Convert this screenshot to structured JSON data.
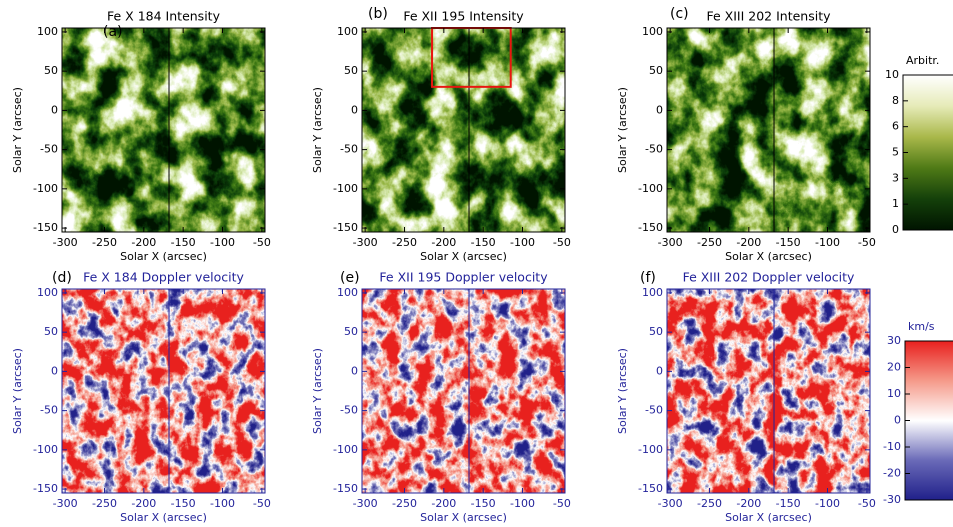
{
  "chart_data": [
    {
      "type": "heatmap",
      "panel_label": "(a)",
      "title": "Fe X 184 Intensity",
      "xlabel": "Solar X (arcsec)",
      "ylabel": "Solar Y (arcsec)",
      "xlim": [
        -304,
        -46
      ],
      "ylim": [
        -155,
        105
      ],
      "xticks": [
        -300,
        -250,
        -200,
        -150,
        -100,
        -50
      ],
      "yticks": [
        -150,
        -100,
        -50,
        0,
        50,
        100
      ],
      "colormap": "green",
      "text_color": "#000000",
      "line_x": -168,
      "line_color": "#000000"
    },
    {
      "type": "heatmap",
      "panel_label": "(b)",
      "title": "Fe XII 195 Intensity",
      "xlabel": "Solar X (arcsec)",
      "ylabel": "Solar Y (arcsec)",
      "xlim": [
        -304,
        -46
      ],
      "ylim": [
        -155,
        105
      ],
      "xticks": [
        -300,
        -250,
        -200,
        -150,
        -100,
        -50
      ],
      "yticks": [
        -150,
        -100,
        -50,
        0,
        50,
        100
      ],
      "colormap": "green",
      "text_color": "#000000",
      "line_x": -168,
      "line_color": "#000000",
      "box": {
        "x": [
          -215,
          -115
        ],
        "y": [
          30,
          105
        ],
        "color": "#e8160f"
      }
    },
    {
      "type": "heatmap",
      "panel_label": "(c)",
      "title": "Fe XIII 202 Intensity",
      "xlabel": "Solar X (arcsec)",
      "ylabel": "Solar Y (arcsec)",
      "xlim": [
        -304,
        -46
      ],
      "ylim": [
        -155,
        105
      ],
      "xticks": [
        -300,
        -250,
        -200,
        -150,
        -100,
        -50
      ],
      "yticks": [
        -150,
        -100,
        -50,
        0,
        50,
        100
      ],
      "colormap": "green",
      "text_color": "#000000",
      "line_x": -168,
      "line_color": "#000000"
    },
    {
      "type": "heatmap",
      "panel_label": "(d)",
      "title": "Fe X 184 Doppler velocity",
      "xlabel": "Solar X (arcsec)",
      "ylabel": "Solar Y (arcsec)",
      "xlim": [
        -304,
        -46
      ],
      "ylim": [
        -155,
        105
      ],
      "xticks": [
        -300,
        -250,
        -200,
        -150,
        -100,
        -50
      ],
      "yticks": [
        -150,
        -100,
        -50,
        0,
        50,
        100
      ],
      "colormap": "doppler",
      "text_color": "#23239a",
      "line_x": -168,
      "line_color": "#23239a"
    },
    {
      "type": "heatmap",
      "panel_label": "(e)",
      "title": "Fe XII 195 Doppler velocity",
      "xlabel": "Solar X (arcsec)",
      "ylabel": "Solar Y (arcsec)",
      "xlim": [
        -304,
        -46
      ],
      "ylim": [
        -155,
        105
      ],
      "xticks": [
        -300,
        -250,
        -200,
        -150,
        -100,
        -50
      ],
      "yticks": [
        -150,
        -100,
        -50,
        0,
        50,
        100
      ],
      "colormap": "doppler",
      "text_color": "#23239a",
      "line_x": -168,
      "line_color": "#23239a"
    },
    {
      "type": "heatmap",
      "panel_label": "(f)",
      "title": "Fe XIII 202 Doppler velocity",
      "xlabel": "Solar X (arcsec)",
      "ylabel": "Solar Y (arcsec)",
      "xlim": [
        -304,
        -46
      ],
      "ylim": [
        -155,
        105
      ],
      "xticks": [
        -300,
        -250,
        -200,
        -150,
        -100,
        -50
      ],
      "yticks": [
        -150,
        -100,
        -50,
        0,
        50,
        100
      ],
      "colormap": "doppler",
      "text_color": "#23239a",
      "line_x": -168,
      "line_color": "#23239a"
    },
    {
      "type": "colorbar",
      "title": "Arbitr.",
      "ticks": [
        0,
        1,
        3,
        5,
        6,
        8,
        10
      ],
      "scale": "nonlinear",
      "colormap": "green",
      "text_color": "#000000"
    },
    {
      "type": "colorbar",
      "title": "km/s",
      "ylim": [
        -30,
        30
      ],
      "ticks": [
        -30,
        -20,
        -10,
        0,
        10,
        20,
        30
      ],
      "scale": "linear",
      "colormap": "doppler",
      "text_color": "#23239a"
    }
  ]
}
